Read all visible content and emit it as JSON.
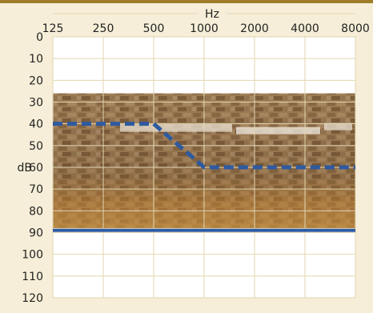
{
  "chart_data": {
    "type": "line",
    "title": "",
    "xlabel": "Hz",
    "ylabel": "dB",
    "x_scale": "log2",
    "y_inverted": true,
    "x_ticks": [
      "125",
      "250",
      "500",
      "1000",
      "2000",
      "4000",
      "8000"
    ],
    "x_tick_values": [
      125,
      250,
      500,
      1000,
      2000,
      4000,
      8000
    ],
    "y_ticks": [
      "0",
      "10",
      "20",
      "30",
      "40",
      "50",
      "60",
      "70",
      "80",
      "90",
      "100",
      "110",
      "120"
    ],
    "y_tick_values": [
      0,
      10,
      20,
      30,
      40,
      50,
      60,
      70,
      80,
      90,
      100,
      110,
      120
    ],
    "xlim": [
      125,
      8000
    ],
    "ylim": [
      0,
      120
    ],
    "grid": true,
    "background_photo": {
      "description_icon": "amphitheater-seating-photo",
      "y_range_db": [
        26,
        88
      ]
    },
    "series": [
      {
        "style": "dashed",
        "color": "#2e5aa0",
        "x": [
          125,
          500,
          1000,
          8000
        ],
        "y": [
          40,
          40,
          60,
          60
        ]
      },
      {
        "style": "solid",
        "color": "#2e5aa0",
        "x": [
          125,
          8000
        ],
        "y": [
          89,
          89
        ]
      }
    ]
  },
  "colors": {
    "background": "#f6eed8",
    "plot_area": "#ffffff",
    "grid": "#e2d6b2",
    "border": "#c8b680",
    "series": "#2e5aa0",
    "top_band": "#a07c2a"
  }
}
